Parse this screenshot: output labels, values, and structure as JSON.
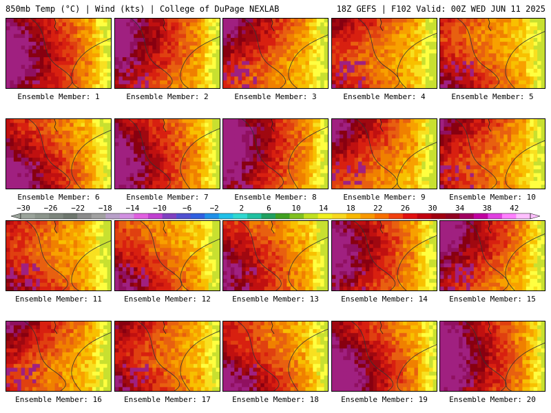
{
  "header": {
    "title_left": "850mb Temp (°C) | Wind (kts) | College of DuPage NEXLAB",
    "title_right": "18Z GEFS | F102 Valid: 00Z WED JUN 11 2025"
  },
  "members": [
    {
      "label": "Ensemble Member: 1",
      "warmth": 0.78
    },
    {
      "label": "Ensemble Member: 2",
      "warmth": 0.74
    },
    {
      "label": "Ensemble Member: 3",
      "warmth": 0.72
    },
    {
      "label": "Ensemble Member: 4",
      "warmth": 0.7
    },
    {
      "label": "Ensemble Member: 5",
      "warmth": 0.68
    },
    {
      "label": "Ensemble Member: 6",
      "warmth": 0.76
    },
    {
      "label": "Ensemble Member: 7",
      "warmth": 0.72
    },
    {
      "label": "Ensemble Member: 8",
      "warmth": 0.8
    },
    {
      "label": "Ensemble Member: 9",
      "warmth": 0.66
    },
    {
      "label": "Ensemble Member: 10",
      "warmth": 0.74
    },
    {
      "label": "Ensemble Member: 11",
      "warmth": 0.7
    },
    {
      "label": "Ensemble Member: 12",
      "warmth": 0.64
    },
    {
      "label": "Ensemble Member: 13",
      "warmth": 0.6
    },
    {
      "label": "Ensemble Member: 14",
      "warmth": 0.72
    },
    {
      "label": "Ensemble Member: 15",
      "warmth": 0.76
    },
    {
      "label": "Ensemble Member: 16",
      "warmth": 0.7
    },
    {
      "label": "Ensemble Member: 17",
      "warmth": 0.78
    },
    {
      "label": "Ensemble Member: 18",
      "warmth": 0.76
    },
    {
      "label": "Ensemble Member: 19",
      "warmth": 0.8
    },
    {
      "label": "Ensemble Member: 20",
      "warmth": 0.82
    }
  ],
  "colorbar": {
    "ticks": [
      "−30",
      "−26",
      "−22",
      "−18",
      "−14",
      "−10",
      "−6",
      "−2",
      "2",
      "6",
      "10",
      "14",
      "18",
      "22",
      "26",
      "30",
      "34",
      "38",
      "42"
    ],
    "colors": [
      "#9aa39a",
      "#8b948b",
      "#7c857c",
      "#6d766d",
      "#8a8a8a",
      "#a0a0a0",
      "#b8a0c8",
      "#d090e0",
      "#e060e0",
      "#c040d0",
      "#8040c0",
      "#5050d0",
      "#3060e0",
      "#2090e8",
      "#20c0e8",
      "#30d8d0",
      "#20c0a0",
      "#20a060",
      "#40a020",
      "#80c020",
      "#c0e020",
      "#f0f020",
      "#f8d820",
      "#f8b800",
      "#f89800",
      "#f87000",
      "#f04010",
      "#e01010",
      "#c00010",
      "#a00010",
      "#900020",
      "#a00060",
      "#c000a0",
      "#e040e0",
      "#ff80ff",
      "#ffc0ff"
    ]
  }
}
